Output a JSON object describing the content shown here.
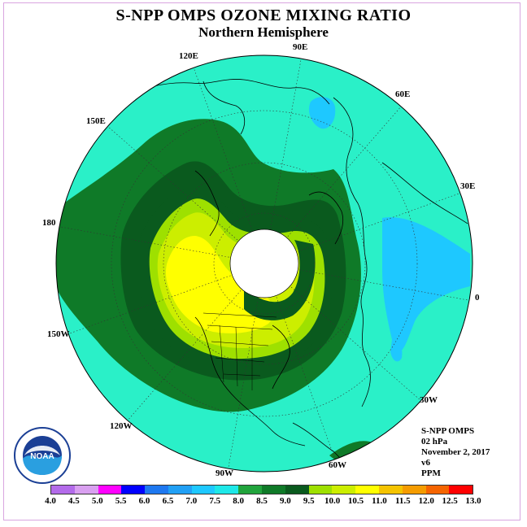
{
  "title": "S-NPP OMPS OZONE MIXING RATIO",
  "subtitle": "Northern Hemisphere",
  "longitude_labels": [
    "90E",
    "60E",
    "30E",
    "0",
    "30W",
    "60W",
    "90W",
    "120W",
    "150W",
    "180",
    "150E",
    "120E"
  ],
  "info": {
    "instrument": "S-NPP OMPS",
    "level": "02 hPa",
    "date": "November 2, 2017",
    "version": "v6",
    "units": "PPM"
  },
  "logo_text": "NOAA",
  "colorbar": {
    "ticks": [
      "4.0",
      "4.5",
      "5.0",
      "5.5",
      "6.0",
      "6.5",
      "7.0",
      "7.5",
      "8.0",
      "8.5",
      "9.0",
      "9.5",
      "10.0",
      "10.5",
      "11.0",
      "11.5",
      "12.0",
      "12.5",
      "13.0"
    ],
    "colors": [
      "#b36bea",
      "#d9a0f0",
      "#ff00ff",
      "#0000ff",
      "#1e78f0",
      "#21a0f5",
      "#1ec8ff",
      "#1ee8e8",
      "#21a43c",
      "#0f7a28",
      "#0a5a1e",
      "#9ee000",
      "#ccee00",
      "#ffff00",
      "#f5c400",
      "#f59c00",
      "#f56400",
      "#ff0000",
      "#8b5a3c"
    ]
  },
  "colors": {
    "background_cyan": "#2af0c8",
    "dark_green": "#0f7a28",
    "mid_green": "#21a43c",
    "darkest_green": "#0a5a1e",
    "yellow_green": "#9ee000",
    "lime": "#ccee00",
    "yellow": "#ffff00",
    "light_blue": "#1ec8ff"
  }
}
